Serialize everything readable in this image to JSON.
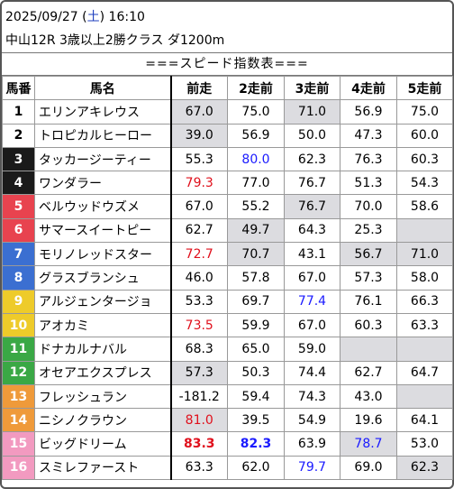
{
  "header": {
    "date": "2025/09/27",
    "weekday_open": " (",
    "weekday": "土",
    "weekday_close": ")",
    "time": " 16:10",
    "race": "中山12R 3歳以上2勝クラス ダ1200m"
  },
  "title": "===スピード指数表===",
  "columns": [
    "馬番",
    "馬名",
    "前走",
    "2走前",
    "3走前",
    "4走前",
    "5走前"
  ],
  "colors": {
    "frame": [
      "#ffffff",
      "#ffffff",
      "#1a1a1a",
      "#1a1a1a",
      "#e8434f",
      "#e8434f",
      "#3b6fd1",
      "#3b6fd1",
      "#eecb2a",
      "#eecb2a",
      "#3aa845",
      "#3aa845",
      "#ef9a3a",
      "#ef9a3a",
      "#f29ac0",
      "#f29ac0"
    ],
    "num_text": [
      "#000000",
      "#000000",
      "#ffffff",
      "#ffffff",
      "#ffffff",
      "#ffffff",
      "#ffffff",
      "#ffffff",
      "#ffffff",
      "#ffffff",
      "#ffffff",
      "#ffffff",
      "#ffffff",
      "#ffffff",
      "#ffffff",
      "#ffffff"
    ]
  },
  "rows": [
    {
      "num": "1",
      "name": "エリンアキレウス",
      "cells": [
        {
          "v": "67.0",
          "g": true
        },
        {
          "v": "75.0"
        },
        {
          "v": "71.0",
          "g": true
        },
        {
          "v": "56.9"
        },
        {
          "v": "75.0"
        }
      ]
    },
    {
      "num": "2",
      "name": "トロピカルヒーロー",
      "cells": [
        {
          "v": "39.0",
          "g": true
        },
        {
          "v": "56.9"
        },
        {
          "v": "50.0"
        },
        {
          "v": "47.3"
        },
        {
          "v": "60.0"
        }
      ]
    },
    {
      "num": "3",
      "name": "タッカージーティー",
      "cells": [
        {
          "v": "55.3"
        },
        {
          "v": "80.0",
          "c": "blue"
        },
        {
          "v": "62.3"
        },
        {
          "v": "76.3"
        },
        {
          "v": "60.3"
        }
      ]
    },
    {
      "num": "4",
      "name": "ワンダラー",
      "cells": [
        {
          "v": "79.3",
          "c": "red"
        },
        {
          "v": "77.0"
        },
        {
          "v": "76.7"
        },
        {
          "v": "51.3"
        },
        {
          "v": "54.3"
        }
      ]
    },
    {
      "num": "5",
      "name": "ベルウッドウズメ",
      "cells": [
        {
          "v": "67.0"
        },
        {
          "v": "55.2"
        },
        {
          "v": "76.7",
          "g": true
        },
        {
          "v": "70.0"
        },
        {
          "v": "58.6"
        }
      ]
    },
    {
      "num": "6",
      "name": "サマースイートピー",
      "cells": [
        {
          "v": "62.7"
        },
        {
          "v": "49.7",
          "g": true
        },
        {
          "v": "64.3"
        },
        {
          "v": "25.3"
        },
        {
          "v": "",
          "g": true
        }
      ]
    },
    {
      "num": "7",
      "name": "モリノレッドスター",
      "cells": [
        {
          "v": "72.7",
          "c": "red"
        },
        {
          "v": "70.7",
          "g": true
        },
        {
          "v": "43.1"
        },
        {
          "v": "56.7",
          "g": true
        },
        {
          "v": "71.0",
          "g": true
        }
      ]
    },
    {
      "num": "8",
      "name": "グラスブランシュ",
      "cells": [
        {
          "v": "46.0"
        },
        {
          "v": "57.8"
        },
        {
          "v": "67.0"
        },
        {
          "v": "57.3"
        },
        {
          "v": "58.0"
        }
      ]
    },
    {
      "num": "9",
      "name": "アルジェンタージョ",
      "cells": [
        {
          "v": "53.3"
        },
        {
          "v": "69.7"
        },
        {
          "v": "77.4",
          "c": "blue"
        },
        {
          "v": "76.1"
        },
        {
          "v": "66.3"
        }
      ]
    },
    {
      "num": "10",
      "name": "アオカミ",
      "cells": [
        {
          "v": "73.5",
          "c": "red"
        },
        {
          "v": "59.9"
        },
        {
          "v": "67.0"
        },
        {
          "v": "60.3"
        },
        {
          "v": "63.3"
        }
      ]
    },
    {
      "num": "11",
      "name": "ドナカルナバル",
      "cells": [
        {
          "v": "68.3"
        },
        {
          "v": "65.0"
        },
        {
          "v": "59.0"
        },
        {
          "v": "",
          "g": true
        },
        {
          "v": "",
          "g": true
        }
      ]
    },
    {
      "num": "12",
      "name": "オセアエクスプレス",
      "cells": [
        {
          "v": "57.3",
          "g": true
        },
        {
          "v": "50.3"
        },
        {
          "v": "74.4"
        },
        {
          "v": "62.7"
        },
        {
          "v": "64.7"
        }
      ]
    },
    {
      "num": "13",
      "name": "フレッシュラン",
      "cells": [
        {
          "v": "-181.2"
        },
        {
          "v": "59.4"
        },
        {
          "v": "74.3"
        },
        {
          "v": "43.0"
        },
        {
          "v": "",
          "g": true
        }
      ]
    },
    {
      "num": "14",
      "name": "ニシノクラウン",
      "cells": [
        {
          "v": "81.0",
          "c": "red",
          "g": true
        },
        {
          "v": "39.5"
        },
        {
          "v": "54.9"
        },
        {
          "v": "19.6"
        },
        {
          "v": "64.1"
        }
      ]
    },
    {
      "num": "15",
      "name": "ビッグドリーム",
      "cells": [
        {
          "v": "83.3",
          "c": "red",
          "b": true
        },
        {
          "v": "82.3",
          "c": "blue",
          "b": true
        },
        {
          "v": "63.9"
        },
        {
          "v": "78.7",
          "c": "blue",
          "g": true
        },
        {
          "v": "53.0"
        }
      ]
    },
    {
      "num": "16",
      "name": "スミレファースト",
      "cells": [
        {
          "v": "63.3"
        },
        {
          "v": "62.0"
        },
        {
          "v": "79.7",
          "c": "blue"
        },
        {
          "v": "69.0"
        },
        {
          "v": "62.3",
          "g": true
        }
      ]
    }
  ]
}
